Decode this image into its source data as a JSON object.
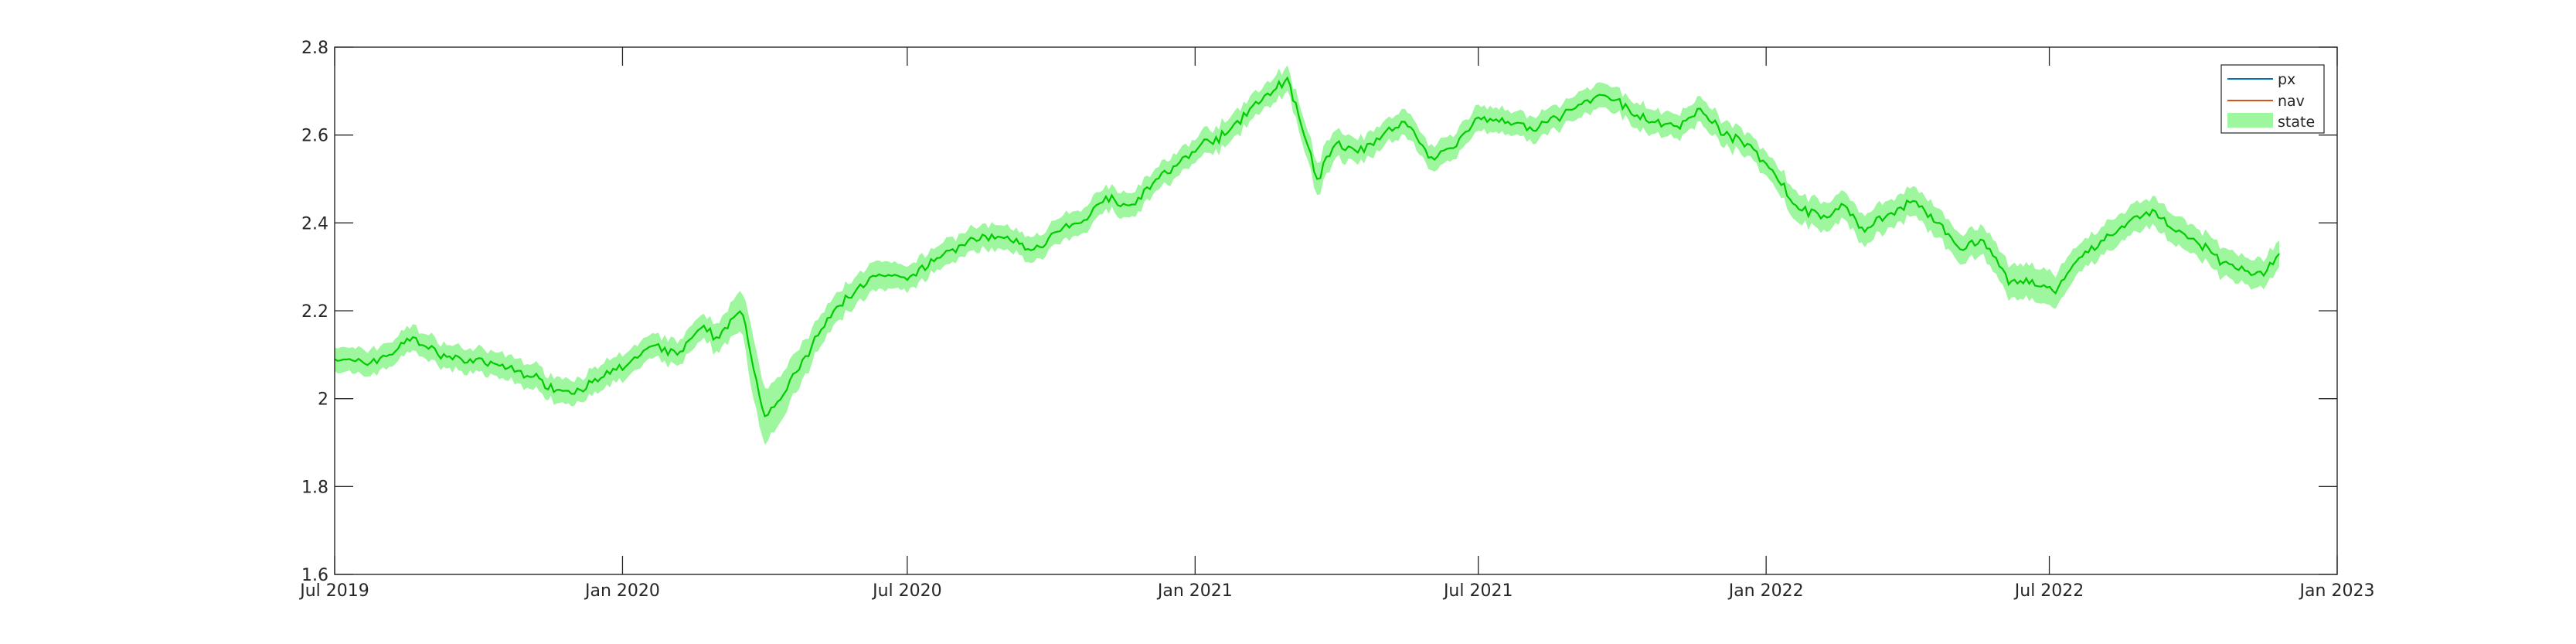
{
  "chart_data": {
    "type": "line",
    "title": "",
    "xlabel": "",
    "ylabel": "",
    "grid": false,
    "legend_position": "top-right",
    "xlim": [
      "2019-07-01",
      "2023-01-01"
    ],
    "ylim": [
      1.6,
      2.8
    ],
    "x_ticks": [
      {
        "date": "2019-07-01",
        "label": "Jul 2019"
      },
      {
        "date": "2020-01-01",
        "label": "Jan 2020"
      },
      {
        "date": "2020-07-01",
        "label": "Jul 2020"
      },
      {
        "date": "2021-01-01",
        "label": "Jan 2021"
      },
      {
        "date": "2021-07-01",
        "label": "Jul 2021"
      },
      {
        "date": "2022-01-01",
        "label": "Jan 2022"
      },
      {
        "date": "2022-07-01",
        "label": "Jul 2022"
      },
      {
        "date": "2023-01-01",
        "label": "Jan 2023"
      }
    ],
    "y_ticks": [
      {
        "value": 1.6,
        "label": "1.6"
      },
      {
        "value": 1.8,
        "label": "1.8"
      },
      {
        "value": 2.0,
        "label": "2"
      },
      {
        "value": 2.2,
        "label": "2.2"
      },
      {
        "value": 2.4,
        "label": "2.4"
      },
      {
        "value": 2.6,
        "label": "2.6"
      },
      {
        "value": 2.8,
        "label": "2.8"
      }
    ],
    "series": [
      {
        "name": "px",
        "color": "#0072bd",
        "kind": "line"
      },
      {
        "name": "nav",
        "color": "#d95319",
        "kind": "line"
      },
      {
        "name": "state",
        "color": "#00cc00",
        "band_color": "#9ef79e",
        "kind": "band-with-mean"
      }
    ],
    "x": [
      "2019-07-01",
      "2019-07-20",
      "2019-08-05",
      "2019-08-20",
      "2019-09-05",
      "2019-09-20",
      "2019-10-05",
      "2019-10-20",
      "2019-11-05",
      "2019-11-20",
      "2019-12-05",
      "2019-12-20",
      "2020-01-05",
      "2020-01-20",
      "2020-02-05",
      "2020-02-20",
      "2020-03-01",
      "2020-03-10",
      "2020-03-18",
      "2020-03-23",
      "2020-04-01",
      "2020-04-15",
      "2020-05-01",
      "2020-05-15",
      "2020-06-01",
      "2020-06-15",
      "2020-07-01",
      "2020-07-20",
      "2020-08-05",
      "2020-08-20",
      "2020-09-05",
      "2020-09-20",
      "2020-10-05",
      "2020-10-20",
      "2020-11-05",
      "2020-11-20",
      "2020-12-05",
      "2020-12-20",
      "2021-01-05",
      "2021-01-20",
      "2021-02-05",
      "2021-02-20",
      "2021-03-01",
      "2021-03-10",
      "2021-03-20",
      "2021-04-01",
      "2021-04-15",
      "2021-05-01",
      "2021-05-15",
      "2021-06-01",
      "2021-06-15",
      "2021-07-01",
      "2021-07-20",
      "2021-08-05",
      "2021-08-20",
      "2021-09-05",
      "2021-09-20",
      "2021-10-05",
      "2021-10-20",
      "2021-11-05",
      "2021-11-20",
      "2021-12-05",
      "2021-12-20",
      "2022-01-05",
      "2022-01-20",
      "2022-02-05",
      "2022-02-20",
      "2022-03-05",
      "2022-03-20",
      "2022-04-05",
      "2022-04-20",
      "2022-05-05",
      "2022-05-20",
      "2022-06-05",
      "2022-06-20",
      "2022-07-05",
      "2022-07-20",
      "2022-08-05",
      "2022-08-20",
      "2022-09-05",
      "2022-09-20",
      "2022-10-05",
      "2022-10-20",
      "2022-11-05",
      "2022-11-15",
      "2022-11-25"
    ],
    "values": [
      2.09,
      2.08,
      2.1,
      2.14,
      2.1,
      2.09,
      2.08,
      2.07,
      2.05,
      2.02,
      2.02,
      2.05,
      2.08,
      2.12,
      2.1,
      2.16,
      2.14,
      2.18,
      2.19,
      2.1,
      1.96,
      2.02,
      2.12,
      2.2,
      2.26,
      2.28,
      2.27,
      2.32,
      2.35,
      2.37,
      2.36,
      2.34,
      2.38,
      2.4,
      2.46,
      2.44,
      2.49,
      2.53,
      2.58,
      2.6,
      2.66,
      2.7,
      2.73,
      2.62,
      2.5,
      2.58,
      2.56,
      2.6,
      2.63,
      2.55,
      2.57,
      2.64,
      2.63,
      2.61,
      2.64,
      2.67,
      2.69,
      2.66,
      2.63,
      2.62,
      2.66,
      2.6,
      2.58,
      2.52,
      2.44,
      2.41,
      2.44,
      2.38,
      2.42,
      2.45,
      2.4,
      2.34,
      2.36,
      2.26,
      2.27,
      2.24,
      2.32,
      2.36,
      2.4,
      2.43,
      2.38,
      2.35,
      2.31,
      2.29,
      2.28,
      2.33
    ],
    "band_half_width": [
      0.025,
      0.025,
      0.025,
      0.025,
      0.025,
      0.025,
      0.025,
      0.025,
      0.025,
      0.025,
      0.025,
      0.025,
      0.025,
      0.025,
      0.025,
      0.025,
      0.03,
      0.035,
      0.045,
      0.07,
      0.06,
      0.045,
      0.035,
      0.03,
      0.03,
      0.03,
      0.025,
      0.025,
      0.025,
      0.025,
      0.025,
      0.025,
      0.025,
      0.025,
      0.025,
      0.025,
      0.025,
      0.025,
      0.025,
      0.025,
      0.025,
      0.025,
      0.025,
      0.03,
      0.035,
      0.03,
      0.025,
      0.025,
      0.025,
      0.025,
      0.025,
      0.025,
      0.025,
      0.025,
      0.025,
      0.025,
      0.025,
      0.025,
      0.025,
      0.025,
      0.025,
      0.025,
      0.025,
      0.025,
      0.03,
      0.03,
      0.03,
      0.03,
      0.03,
      0.03,
      0.03,
      0.03,
      0.03,
      0.035,
      0.035,
      0.035,
      0.03,
      0.03,
      0.03,
      0.03,
      0.03,
      0.03,
      0.03,
      0.03,
      0.03,
      0.03
    ]
  }
}
